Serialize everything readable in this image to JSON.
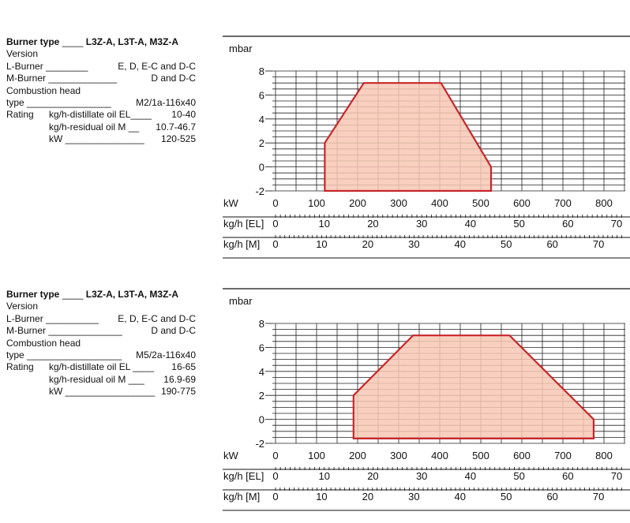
{
  "panels": [
    {
      "spec": {
        "burner_type_label": "Burner type",
        "burner_type_lead": "____",
        "burner_type_value": "L3Z-A, L3T-A, M3Z-A",
        "version_label": "Version",
        "l_burner_label": "L-Burner",
        "l_burner_lead": "________",
        "l_burner_value": "E, D, E-C and D-C",
        "m_burner_label": "M-Burner",
        "m_burner_lead": "_____________",
        "m_burner_value": "D and D-C",
        "head_label": "Combustion head",
        "type_label": "type",
        "type_lead": "________________",
        "type_value": "M2/1a-116x40",
        "rating_label": "Rating",
        "rating_lines": [
          {
            "label": "kg/h-distillate oil EL",
            "lead": "____",
            "value": "10-40"
          },
          {
            "label": "kg/h-residual oil M",
            "lead": "__",
            "value": "10.7-46.7"
          },
          {
            "label": "kW",
            "lead": "_______________",
            "value": "120-525"
          }
        ]
      },
      "chart_data": {
        "type": "area",
        "ylabel": "mbar",
        "ylim": [
          -2,
          8
        ],
        "y_ticks": [
          "8",
          "6",
          "4",
          "2",
          "0",
          "-2"
        ],
        "xlim": [
          0,
          850
        ],
        "axes": [
          {
            "label": "kW",
            "ticks": [
              "0",
              "100",
              "200",
              "300",
              "400",
              "500",
              "600",
              "700",
              "800"
            ],
            "tick_values": [
              0,
              100,
              200,
              300,
              400,
              500,
              600,
              700,
              800
            ]
          },
          {
            "label": "kg/h [EL]",
            "ticks": [
              "0",
              "10",
              "20",
              "30",
              "40",
              "50",
              "60",
              "70"
            ],
            "tick_values": [
              0,
              10,
              20,
              30,
              40,
              50,
              60,
              70
            ],
            "kw_per_unit": 11.87
          },
          {
            "label": "kg/h [M]",
            "ticks": [
              "0",
              "10",
              "20",
              "30",
              "40",
              "50",
              "60",
              "70"
            ],
            "tick_values": [
              0,
              10,
              20,
              30,
              40,
              50,
              60,
              70
            ],
            "kw_per_unit": 11.24
          }
        ],
        "region": {
          "x": [
            120,
            120,
            215,
            403,
            525,
            525
          ],
          "y": [
            -2,
            2,
            7,
            7,
            0,
            -2
          ]
        },
        "fill": "#f8c8b4",
        "stroke": "#c8262c",
        "grid": true
      }
    },
    {
      "spec": {
        "burner_type_label": "Burner type",
        "burner_type_lead": "____",
        "burner_type_value": "L3Z-A, L3T-A, M3Z-A",
        "version_label": "Version",
        "l_burner_label": "L-Burner",
        "l_burner_lead": "__________",
        "l_burner_value": "E, D, E-C and D-C",
        "m_burner_label": "M-Burner",
        "m_burner_lead": "______________",
        "m_burner_value": "D and D-C",
        "head_label": "Combustion head",
        "type_label": "type",
        "type_lead": "__________________",
        "type_value": "M5/2a-116x40",
        "rating_label": "Rating",
        "rating_lines": [
          {
            "label": "kg/h-distillate oil EL",
            "lead": "____",
            "value": "16-65"
          },
          {
            "label": "kg/h-residual oil M",
            "lead": "___",
            "value": "16.9-69"
          },
          {
            "label": "kW",
            "lead": "_________________",
            "value": "190-775"
          }
        ]
      },
      "chart_data": {
        "type": "area",
        "ylabel": "mbar",
        "ylim": [
          -2,
          8
        ],
        "y_ticks": [
          "8",
          "6",
          "4",
          "2",
          "0",
          "-2"
        ],
        "xlim": [
          0,
          850
        ],
        "axes": [
          {
            "label": "kW",
            "ticks": [
              "0",
              "100",
              "200",
              "300",
              "400",
              "500",
              "600",
              "700",
              "800"
            ],
            "tick_values": [
              0,
              100,
              200,
              300,
              400,
              500,
              600,
              700,
              800
            ]
          },
          {
            "label": "kg/h [EL]",
            "ticks": [
              "0",
              "10",
              "20",
              "30",
              "40",
              "50",
              "60",
              "70"
            ],
            "tick_values": [
              0,
              10,
              20,
              30,
              40,
              50,
              60,
              70
            ],
            "kw_per_unit": 11.87
          },
          {
            "label": "kg/h [M]",
            "ticks": [
              "0",
              "10",
              "20",
              "30",
              "40",
              "50",
              "60",
              "70"
            ],
            "tick_values": [
              0,
              10,
              20,
              30,
              40,
              50,
              60,
              70
            ],
            "kw_per_unit": 11.24
          }
        ],
        "region": {
          "x": [
            190,
            190,
            335,
            570,
            775,
            775
          ],
          "y": [
            -1.6,
            2,
            7,
            7,
            0,
            -1.6
          ]
        },
        "fill": "#f8c8b4",
        "stroke": "#c8262c",
        "grid": true
      }
    }
  ]
}
